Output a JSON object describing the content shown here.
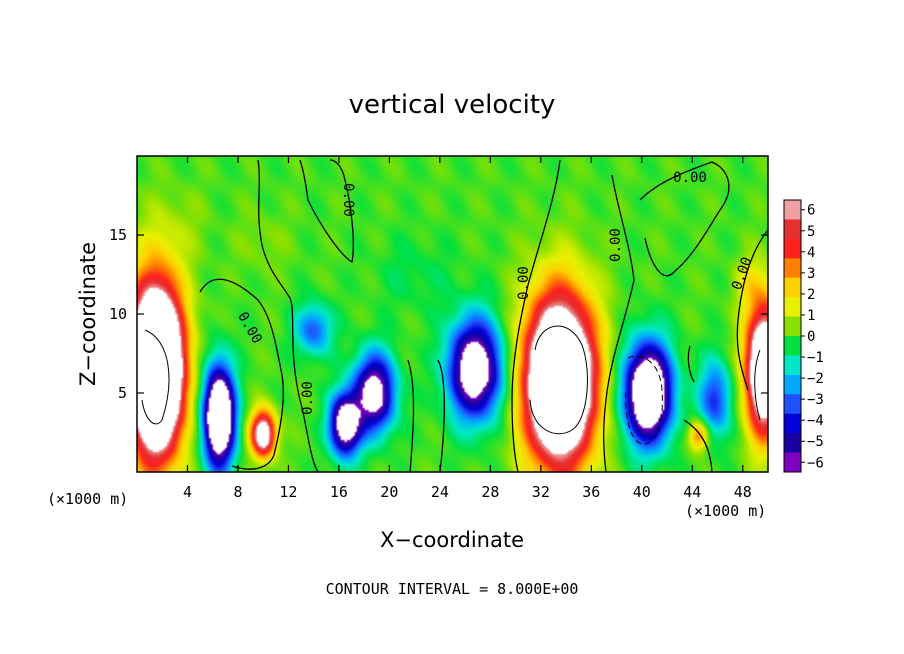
{
  "chart_data": {
    "type": "heatmap",
    "title": "vertical velocity",
    "xlabel": "X−coordinate",
    "ylabel": "Z−coordinate",
    "x_unit": "(×1000 m)",
    "x_ticks": [
      4,
      8,
      12,
      16,
      20,
      24,
      28,
      32,
      36,
      40,
      44,
      48
    ],
    "y_ticks": [
      5,
      10,
      15
    ],
    "xlim": [
      0,
      50
    ],
    "ylim": [
      0,
      20
    ],
    "colorbar": {
      "ticks": [
        6,
        5,
        4,
        3,
        2,
        1,
        0,
        -1,
        -2,
        -3,
        -4,
        -5,
        -6
      ],
      "tick_labels": [
        "6",
        "5",
        "4",
        "3",
        "2",
        "1",
        "0",
        "−1",
        "−2",
        "−3",
        "−4",
        "−5",
        "−6"
      ],
      "colors": [
        "#f0a0a0",
        "#e53030",
        "#ff2020",
        "#ff8000",
        "#ffd000",
        "#e8f000",
        "#88e000",
        "#00e040",
        "#00e8c8",
        "#00a8ff",
        "#2050ff",
        "#0000d8",
        "#1a00a0",
        "#8000c0"
      ]
    },
    "contour_labels": [
      "0.00",
      "0.00",
      "0.00",
      "0.00",
      "0.00",
      "0.00",
      "0.00"
    ],
    "footer": "CONTOUR INTERVAL = 8.000E+00",
    "background_value": 0,
    "anomalies": [
      {
        "x": 1.5,
        "z": 6.5,
        "rx": 2.6,
        "rz": 6.5,
        "w": 18
      },
      {
        "x": 6.5,
        "z": 3.5,
        "rx": 1.5,
        "rz": 3.8,
        "w": -12
      },
      {
        "x": 10.0,
        "z": 2.4,
        "rx": 1.2,
        "rz": 1.8,
        "w": 9
      },
      {
        "x": 16.5,
        "z": 3.0,
        "rx": 1.5,
        "rz": 2.4,
        "w": -9
      },
      {
        "x": 18.8,
        "z": 5.0,
        "rx": 2.0,
        "rz": 3.0,
        "w": -8
      },
      {
        "x": 14.0,
        "z": 9.0,
        "rx": 1.8,
        "rz": 2.0,
        "w": -3.5
      },
      {
        "x": 26.8,
        "z": 6.5,
        "rx": 2.6,
        "rz": 3.8,
        "w": -9
      },
      {
        "x": 33.5,
        "z": 5.8,
        "rx": 3.4,
        "rz": 6.5,
        "w": 15
      },
      {
        "x": 40.5,
        "z": 5.0,
        "rx": 2.3,
        "rz": 3.8,
        "w": -11
      },
      {
        "x": 44.5,
        "z": 2.3,
        "rx": 1.0,
        "rz": 1.2,
        "w": 4
      },
      {
        "x": 45.8,
        "z": 4.6,
        "rx": 1.6,
        "rz": 3.0,
        "w": -4
      },
      {
        "x": 49.7,
        "z": 6.5,
        "rx": 1.8,
        "rz": 5.0,
        "w": 12
      },
      {
        "x": 3.0,
        "z": 15.5,
        "rx": 3.0,
        "rz": 3.0,
        "w": 0.6
      },
      {
        "x": 10.0,
        "z": 14.5,
        "rx": 2.5,
        "rz": 2.5,
        "w": 0.5
      },
      {
        "x": 48.5,
        "z": 12.0,
        "rx": 1.5,
        "rz": 2.0,
        "w": 1.3
      },
      {
        "x": 22.0,
        "z": 12.5,
        "rx": 4.0,
        "rz": 3.0,
        "w": -0.6
      }
    ]
  }
}
